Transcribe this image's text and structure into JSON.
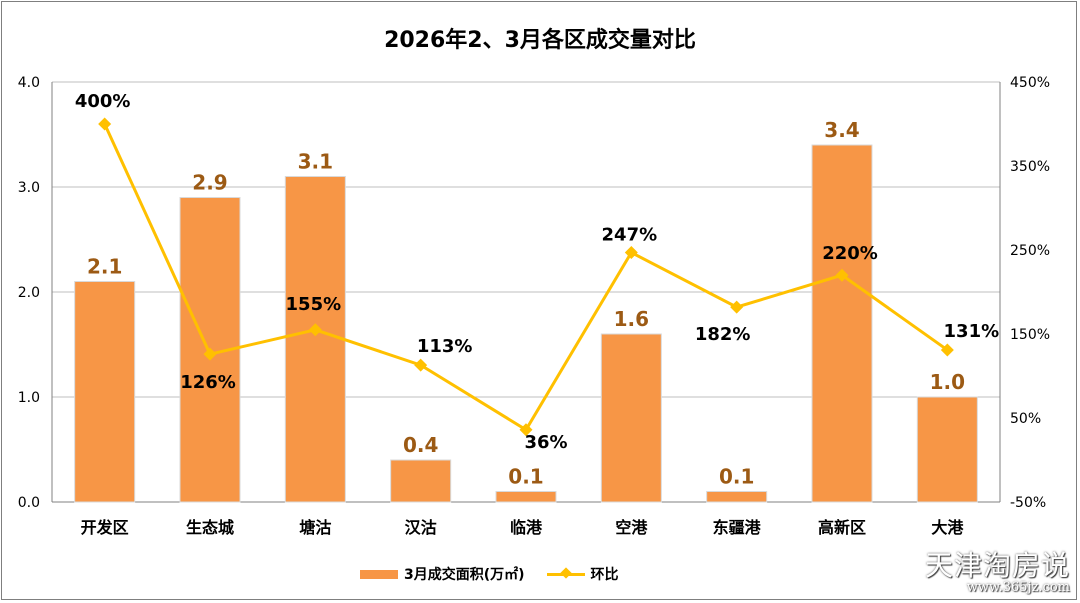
{
  "title": "2026年2、3月各区成交量对比",
  "watermark": {
    "name": "天津淘房说",
    "url": "www.365jz.com"
  },
  "colors": {
    "bar": "#F79646",
    "line": "#FFC000",
    "bar_label": "#9C5A14",
    "grid": "#BFBFBF",
    "axis": "#808080"
  },
  "chart_data": {
    "type": "bar",
    "title": "2026年2、3月各区成交量对比",
    "categories": [
      "开发区",
      "生态城",
      "塘沽",
      "汉沽",
      "临港",
      "空港",
      "东疆港",
      "高新区",
      "大港"
    ],
    "series": [
      {
        "name": "3月成交面积(万㎡)",
        "type": "bar",
        "axis": "left",
        "values": [
          2.1,
          2.9,
          3.1,
          0.4,
          0.1,
          1.6,
          0.1,
          3.4,
          1.0
        ],
        "labels": [
          "2.1",
          "2.9",
          "3.1",
          "0.4",
          "0.1",
          "1.6",
          "0.1",
          "3.4",
          "1.0"
        ]
      },
      {
        "name": "环比",
        "type": "line",
        "axis": "right",
        "values": [
          400,
          126,
          155,
          113,
          36,
          247,
          182,
          220,
          131
        ],
        "labels": [
          "400%",
          "126%",
          "155%",
          "113%",
          "36%",
          "247%",
          "182%",
          "220%",
          "131%"
        ]
      }
    ],
    "left_axis": {
      "min": 0,
      "max": 4,
      "ticks": [
        "0.0",
        "1.0",
        "2.0",
        "3.0",
        "4.0"
      ]
    },
    "right_axis": {
      "min": -50,
      "max": 450,
      "ticks": [
        "-50%",
        "50%",
        "150%",
        "250%",
        "350%",
        "450%"
      ]
    },
    "grid": true,
    "legend": "bottom"
  }
}
